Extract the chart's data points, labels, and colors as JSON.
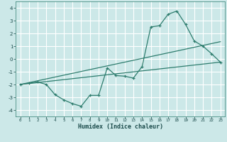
{
  "xlabel": "Humidex (Indice chaleur)",
  "xlim": [
    -0.5,
    23.5
  ],
  "ylim": [
    -4.5,
    4.5
  ],
  "xticks": [
    0,
    1,
    2,
    3,
    4,
    5,
    6,
    7,
    8,
    9,
    10,
    11,
    12,
    13,
    14,
    15,
    16,
    17,
    18,
    19,
    20,
    21,
    22,
    23
  ],
  "yticks": [
    -4,
    -3,
    -2,
    -1,
    0,
    1,
    2,
    3,
    4
  ],
  "bg_color": "#cce8e8",
  "grid_color": "#ffffff",
  "line_color": "#2e7d6e",
  "line1_x": [
    0,
    1,
    2,
    3,
    4,
    5,
    6,
    7,
    8,
    9,
    10,
    11,
    12,
    13,
    14,
    15,
    16,
    17,
    18,
    19,
    20,
    21,
    22,
    23
  ],
  "line1_y": [
    -2.0,
    -1.9,
    -1.8,
    -2.0,
    -2.8,
    -3.2,
    -3.5,
    -3.7,
    -2.85,
    -2.85,
    -0.7,
    -1.3,
    -1.35,
    -1.5,
    -0.6,
    2.5,
    2.6,
    3.5,
    3.75,
    2.7,
    1.4,
    1.0,
    0.4,
    -0.25
  ],
  "line2_x": [
    0,
    23
  ],
  "line2_y": [
    -2.0,
    -0.25
  ],
  "line3_x": [
    0,
    23
  ],
  "line3_y": [
    -2.0,
    1.35
  ]
}
